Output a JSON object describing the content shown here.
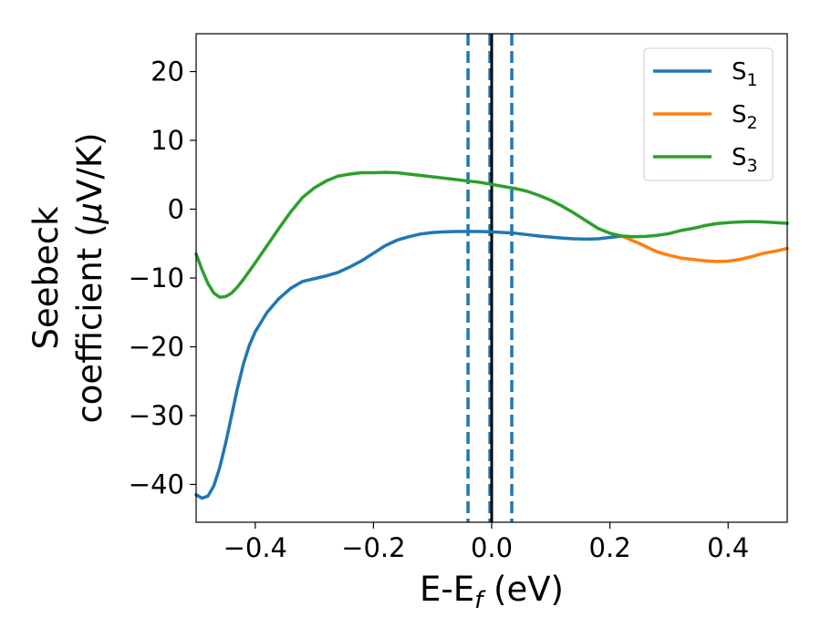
{
  "chart_data": {
    "type": "line",
    "xlabel": "E-E",
    "xlabel_sub": "f",
    "xlabel_unit": " (eV)",
    "ylabel_line1": "Seebeck",
    "ylabel_line2": "coefficient  (",
    "ylabel_mu": "μ",
    "ylabel_unit_tail": "V/K)",
    "xlim": [
      -0.5,
      0.5
    ],
    "ylim": [
      -45.5,
      25.5
    ],
    "xticks": [
      -0.4,
      -0.2,
      0.0,
      0.2,
      0.4
    ],
    "xtick_labels": [
      "−0.4",
      "−0.2",
      "0.0",
      "0.2",
      "0.4"
    ],
    "yticks": [
      20,
      10,
      0,
      -10,
      -20,
      -30,
      -40
    ],
    "ytick_labels": [
      "20",
      "10",
      "0",
      "−10",
      "−20",
      "−30",
      "−40"
    ],
    "grid": false,
    "legend_position": "top-right",
    "series": [
      {
        "name": "S",
        "name_sub": "1",
        "color": "#1f77b4",
        "x": [
          -0.5,
          -0.49,
          -0.48,
          -0.47,
          -0.46,
          -0.45,
          -0.44,
          -0.43,
          -0.42,
          -0.41,
          -0.4,
          -0.38,
          -0.36,
          -0.34,
          -0.32,
          -0.3,
          -0.28,
          -0.26,
          -0.24,
          -0.22,
          -0.2,
          -0.18,
          -0.16,
          -0.14,
          -0.12,
          -0.1,
          -0.08,
          -0.06,
          -0.04,
          -0.02,
          0.0,
          0.02,
          0.04,
          0.06,
          0.08,
          0.1,
          0.12,
          0.14,
          0.16,
          0.18,
          0.2,
          0.22
        ],
        "y": [
          -41.5,
          -42.0,
          -41.7,
          -40.2,
          -37.5,
          -34.0,
          -30.0,
          -26.0,
          -22.5,
          -19.8,
          -17.8,
          -15.0,
          -13.0,
          -11.5,
          -10.5,
          -10.1,
          -9.7,
          -9.2,
          -8.4,
          -7.5,
          -6.4,
          -5.3,
          -4.5,
          -4.0,
          -3.6,
          -3.4,
          -3.3,
          -3.25,
          -3.25,
          -3.25,
          -3.3,
          -3.4,
          -3.5,
          -3.7,
          -3.9,
          -4.05,
          -4.2,
          -4.3,
          -4.35,
          -4.3,
          -4.1,
          -3.9
        ]
      },
      {
        "name": "S",
        "name_sub": "2",
        "color": "#ff7f0e",
        "x": [
          0.22,
          0.25,
          0.28,
          0.3,
          0.32,
          0.34,
          0.36,
          0.38,
          0.4,
          0.42,
          0.44,
          0.46,
          0.48,
          0.5
        ],
        "y": [
          -3.9,
          -5.0,
          -6.2,
          -6.7,
          -7.1,
          -7.3,
          -7.5,
          -7.6,
          -7.55,
          -7.3,
          -6.9,
          -6.4,
          -6.1,
          -5.7
        ]
      },
      {
        "name": "S",
        "name_sub": "3",
        "color": "#2ca02c",
        "x": [
          -0.5,
          -0.49,
          -0.48,
          -0.47,
          -0.46,
          -0.45,
          -0.44,
          -0.43,
          -0.42,
          -0.41,
          -0.4,
          -0.38,
          -0.36,
          -0.34,
          -0.32,
          -0.3,
          -0.28,
          -0.26,
          -0.24,
          -0.22,
          -0.2,
          -0.18,
          -0.16,
          -0.14,
          -0.12,
          -0.1,
          -0.08,
          -0.06,
          -0.04,
          -0.02,
          0.0,
          0.02,
          0.04,
          0.06,
          0.08,
          0.1,
          0.12,
          0.14,
          0.16,
          0.18,
          0.2,
          0.22,
          0.24,
          0.26,
          0.28,
          0.3,
          0.32,
          0.34,
          0.36,
          0.38,
          0.4,
          0.42,
          0.44,
          0.46,
          0.48,
          0.5
        ],
        "y": [
          -6.5,
          -8.8,
          -10.8,
          -12.2,
          -12.8,
          -12.7,
          -12.2,
          -11.3,
          -10.2,
          -9.0,
          -7.8,
          -5.3,
          -2.8,
          -0.4,
          1.7,
          3.1,
          4.1,
          4.8,
          5.1,
          5.3,
          5.3,
          5.35,
          5.3,
          5.1,
          4.9,
          4.7,
          4.5,
          4.3,
          4.1,
          3.9,
          3.6,
          3.3,
          3.0,
          2.6,
          2.0,
          1.3,
          0.4,
          -0.6,
          -1.7,
          -2.8,
          -3.5,
          -3.9,
          -4.0,
          -3.95,
          -3.8,
          -3.55,
          -3.1,
          -2.8,
          -2.4,
          -2.1,
          -1.95,
          -1.85,
          -1.8,
          -1.85,
          -1.95,
          -2.05
        ]
      }
    ],
    "vertical_lines": [
      {
        "x": -0.04,
        "style": "dashed",
        "color": "#1f77b4"
      },
      {
        "x": -0.003,
        "style": "dashed",
        "color": "#1f77b4"
      },
      {
        "x": 0.0,
        "style": "solid",
        "color": "#000000"
      },
      {
        "x": 0.034,
        "style": "dashed",
        "color": "#1f77b4"
      }
    ]
  }
}
